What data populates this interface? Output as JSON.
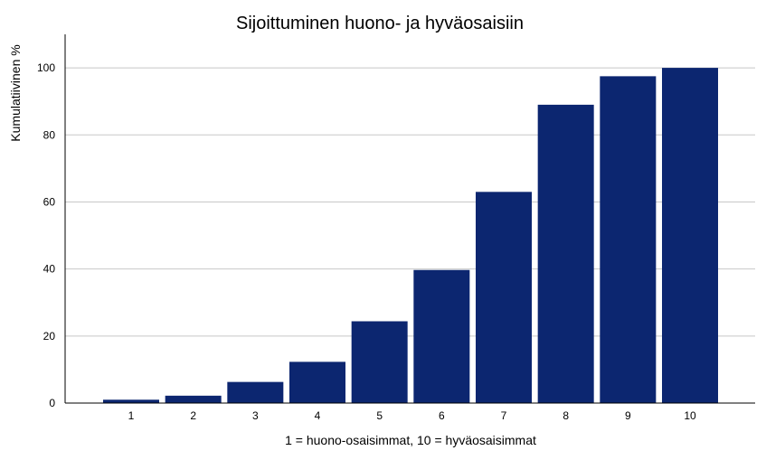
{
  "chart_data": {
    "type": "bar",
    "title": "Sijoittuminen huono- ja hyväosaisiin",
    "xlabel": "1 = huono-osaisimmat, 10 = hyväosaisimmat",
    "ylabel": "Kumulatiivinen %",
    "categories": [
      "1",
      "2",
      "3",
      "4",
      "5",
      "6",
      "7",
      "8",
      "9",
      "10"
    ],
    "values": [
      1.0,
      2.2,
      6.3,
      12.3,
      24.4,
      39.7,
      63.0,
      89.0,
      97.5,
      100.0
    ],
    "ylim": [
      0,
      110
    ],
    "yticks": [
      0,
      20,
      40,
      60,
      80,
      100
    ],
    "grid": true,
    "legend": "none",
    "bar_color": "#0c2670"
  }
}
